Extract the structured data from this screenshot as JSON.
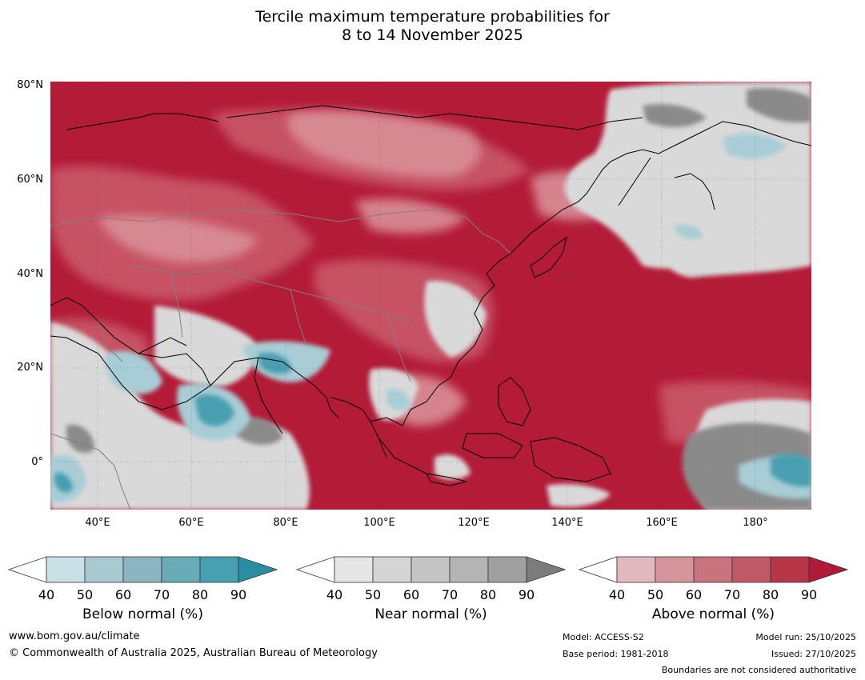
{
  "title": {
    "line1": "Tercile maximum temperature probabilities for",
    "line2": "8 to 14 November 2025"
  },
  "map": {
    "lat_labels": [
      "80°N",
      "60°N",
      "40°N",
      "20°N",
      "0°"
    ],
    "lon_labels": [
      "40°E",
      "60°E",
      "80°E",
      "100°E",
      "120°E",
      "140°E",
      "160°E",
      "180°"
    ],
    "colors": {
      "above_dominant": "#b31b37",
      "above_mid": "#c85566",
      "above_light": "#d98f98",
      "near_light": "#d9d9d9",
      "near_dark": "#8a8a8a",
      "below_light": "#a8cdd6",
      "below_dark": "#4a9fb0",
      "coast": "#000000",
      "border": "#808080"
    }
  },
  "legends": [
    {
      "id": "below",
      "title": "Below normal (%)",
      "ticks": [
        "40",
        "50",
        "60",
        "70",
        "80",
        "90"
      ],
      "colors": [
        "#ffffff",
        "#c8e0e6",
        "#a8c9d0",
        "#89b6c1",
        "#6aabb8",
        "#47a0b1",
        "#2a8ea3"
      ]
    },
    {
      "id": "near",
      "title": "Near normal (%)",
      "ticks": [
        "40",
        "50",
        "60",
        "70",
        "80",
        "90"
      ],
      "colors": [
        "#ffffff",
        "#e6e6e6",
        "#d5d5d5",
        "#c4c4c4",
        "#b4b4b4",
        "#a0a0a0",
        "#7c7c7c"
      ]
    },
    {
      "id": "above",
      "title": "Above normal (%)",
      "ticks": [
        "40",
        "50",
        "60",
        "70",
        "80",
        "90"
      ],
      "colors": [
        "#ffffff",
        "#e0b8bd",
        "#d5959d",
        "#c8737e",
        "#c0596a",
        "#b73648",
        "#b1193a"
      ]
    }
  ],
  "footer": {
    "website": "www.bom.gov.au/climate",
    "copyright": "© Commonwealth of Australia 2025, Australian Bureau of Meteorology",
    "model": "Model: ACCESS-S2",
    "base_period": "Base period: 1981-2018",
    "model_run": "Model run: 25/10/2025",
    "issued": "Issued: 27/10/2025",
    "disclaimer": "Boundaries are not considered authoritative"
  }
}
